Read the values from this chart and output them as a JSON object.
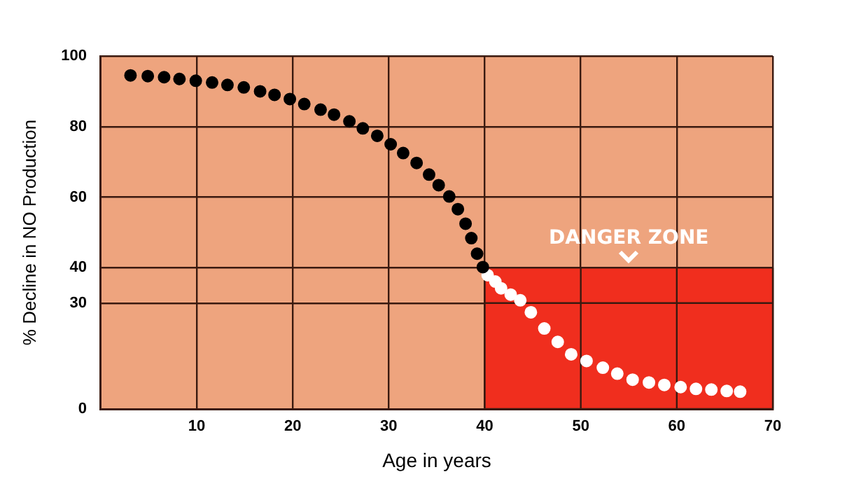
{
  "chart_data": {
    "type": "scatter",
    "xlabel": "Age in years",
    "ylabel": "% Decline in NO Production",
    "xlim": [
      0,
      70
    ],
    "xticks": [
      10,
      20,
      30,
      40,
      50,
      60,
      70
    ],
    "ylim": [
      0,
      100
    ],
    "yticks": [
      0,
      30,
      40,
      60,
      80,
      100
    ],
    "grid": true,
    "legend": false,
    "marker": "circle",
    "annotations": [
      {
        "text": "DANGER ZONE",
        "x": 55,
        "y": 40
      }
    ],
    "series": [
      {
        "color": "#000000",
        "x": [
          3.1,
          4.9,
          6.6,
          8.2,
          9.9,
          11.6,
          13.2,
          14.9,
          16.6,
          18.1,
          19.7,
          21.2,
          22.9,
          24.3,
          25.9,
          27.3,
          28.8,
          30.2,
          31.5,
          32.9,
          34.2,
          35.2,
          36.3,
          37.2,
          38,
          38.6,
          39.2,
          39.8
        ],
        "values": [
          94.5,
          94.3,
          94,
          93.5,
          93,
          92.5,
          91.8,
          91.1,
          90,
          89,
          87.8,
          86.4,
          84.8,
          83.4,
          81.5,
          79.5,
          77.4,
          75,
          72.5,
          69.7,
          66.4,
          63.4,
          60.2,
          56.6,
          52.5,
          48.4,
          44,
          40.2
        ]
      },
      {
        "color": "#ffffff",
        "x": [
          40.3,
          41.1,
          41.7,
          42.7,
          43.7,
          44.8,
          46.2,
          47.6,
          49,
          50.6,
          52.3,
          53.8,
          55.4,
          57.1,
          58.7,
          60.4,
          62,
          63.6,
          65.2,
          66.6
        ],
        "values": [
          37.9,
          36.1,
          34.2,
          32.4,
          30.8,
          27.4,
          22.8,
          19,
          15.5,
          13.6,
          11.7,
          10,
          8.3,
          7.5,
          6.8,
          6.2,
          5.7,
          5.5,
          5.1,
          4.9
        ]
      },
      {
        "type": "area",
        "marker": "none",
        "color": "#f02e1e",
        "x": [
          40,
          70
        ],
        "values": [
          40,
          40
        ]
      }
    ]
  }
}
